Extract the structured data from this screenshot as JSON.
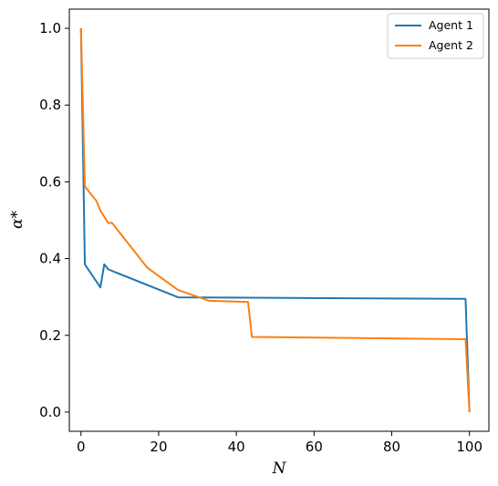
{
  "chart_data": {
    "type": "line",
    "title": "",
    "xlabel": "N",
    "ylabel": "α*",
    "xlim": [
      -3,
      105
    ],
    "ylim": [
      -0.05,
      1.05
    ],
    "xticks": [
      0,
      20,
      40,
      60,
      80,
      100
    ],
    "yticks": [
      0.0,
      0.2,
      0.4,
      0.6,
      0.8,
      1.0
    ],
    "xtick_labels": [
      "0",
      "20",
      "40",
      "60",
      "80",
      "100"
    ],
    "ytick_labels": [
      "0.0",
      "0.2",
      "0.4",
      "0.6",
      "0.8",
      "1.0"
    ],
    "grid": false,
    "legend_position": "top-right",
    "series": [
      {
        "name": "Agent 1",
        "color": "#1f77b4",
        "points": [
          [
            0,
            1.0
          ],
          [
            1,
            0.385
          ],
          [
            5,
            0.325
          ],
          [
            6,
            0.385
          ],
          [
            7,
            0.372
          ],
          [
            25,
            0.299
          ],
          [
            99,
            0.295
          ],
          [
            100,
            0.0
          ]
        ]
      },
      {
        "name": "Agent 2",
        "color": "#ff7f0e",
        "points": [
          [
            0,
            1.0
          ],
          [
            1,
            0.588
          ],
          [
            4,
            0.55
          ],
          [
            5,
            0.525
          ],
          [
            7,
            0.493
          ],
          [
            8,
            0.493
          ],
          [
            17,
            0.377
          ],
          [
            25,
            0.318
          ],
          [
            33,
            0.29
          ],
          [
            43,
            0.287
          ],
          [
            44,
            0.196
          ],
          [
            99,
            0.19
          ],
          [
            100,
            0.0
          ]
        ]
      }
    ]
  }
}
